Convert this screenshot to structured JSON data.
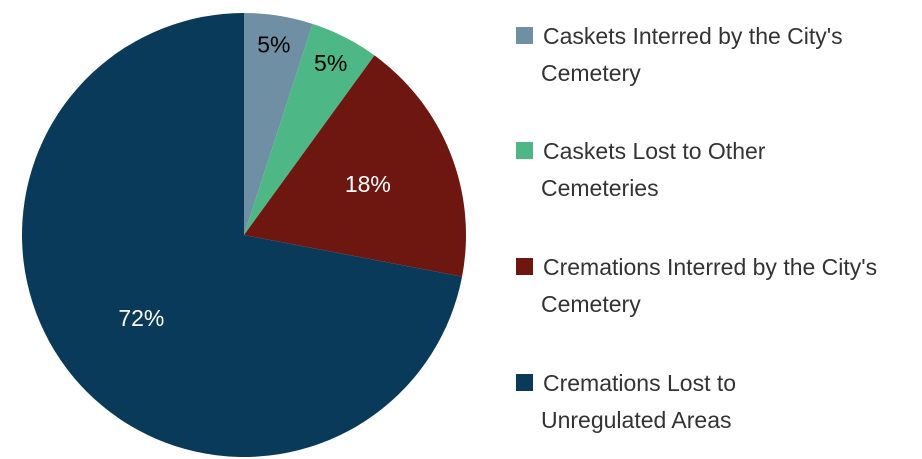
{
  "chart_data": {
    "type": "pie",
    "categories": [
      "Caskets Interred by the City's Cemetery",
      "Caskets Lost to Other Cemeteries",
      "Cremations Interred by the City's Cemetery",
      "Cremations Lost to Unregulated Areas"
    ],
    "values": [
      5,
      5,
      18,
      72
    ],
    "value_labels": [
      "5%",
      "5%",
      "18%",
      "72%"
    ],
    "colors": [
      "#6f8fa4",
      "#4db886",
      "#6d1710",
      "#0a3a5a"
    ],
    "label_colors": [
      "#000000",
      "#000000",
      "#ffffff",
      "#ffffff"
    ],
    "legend": "right"
  }
}
